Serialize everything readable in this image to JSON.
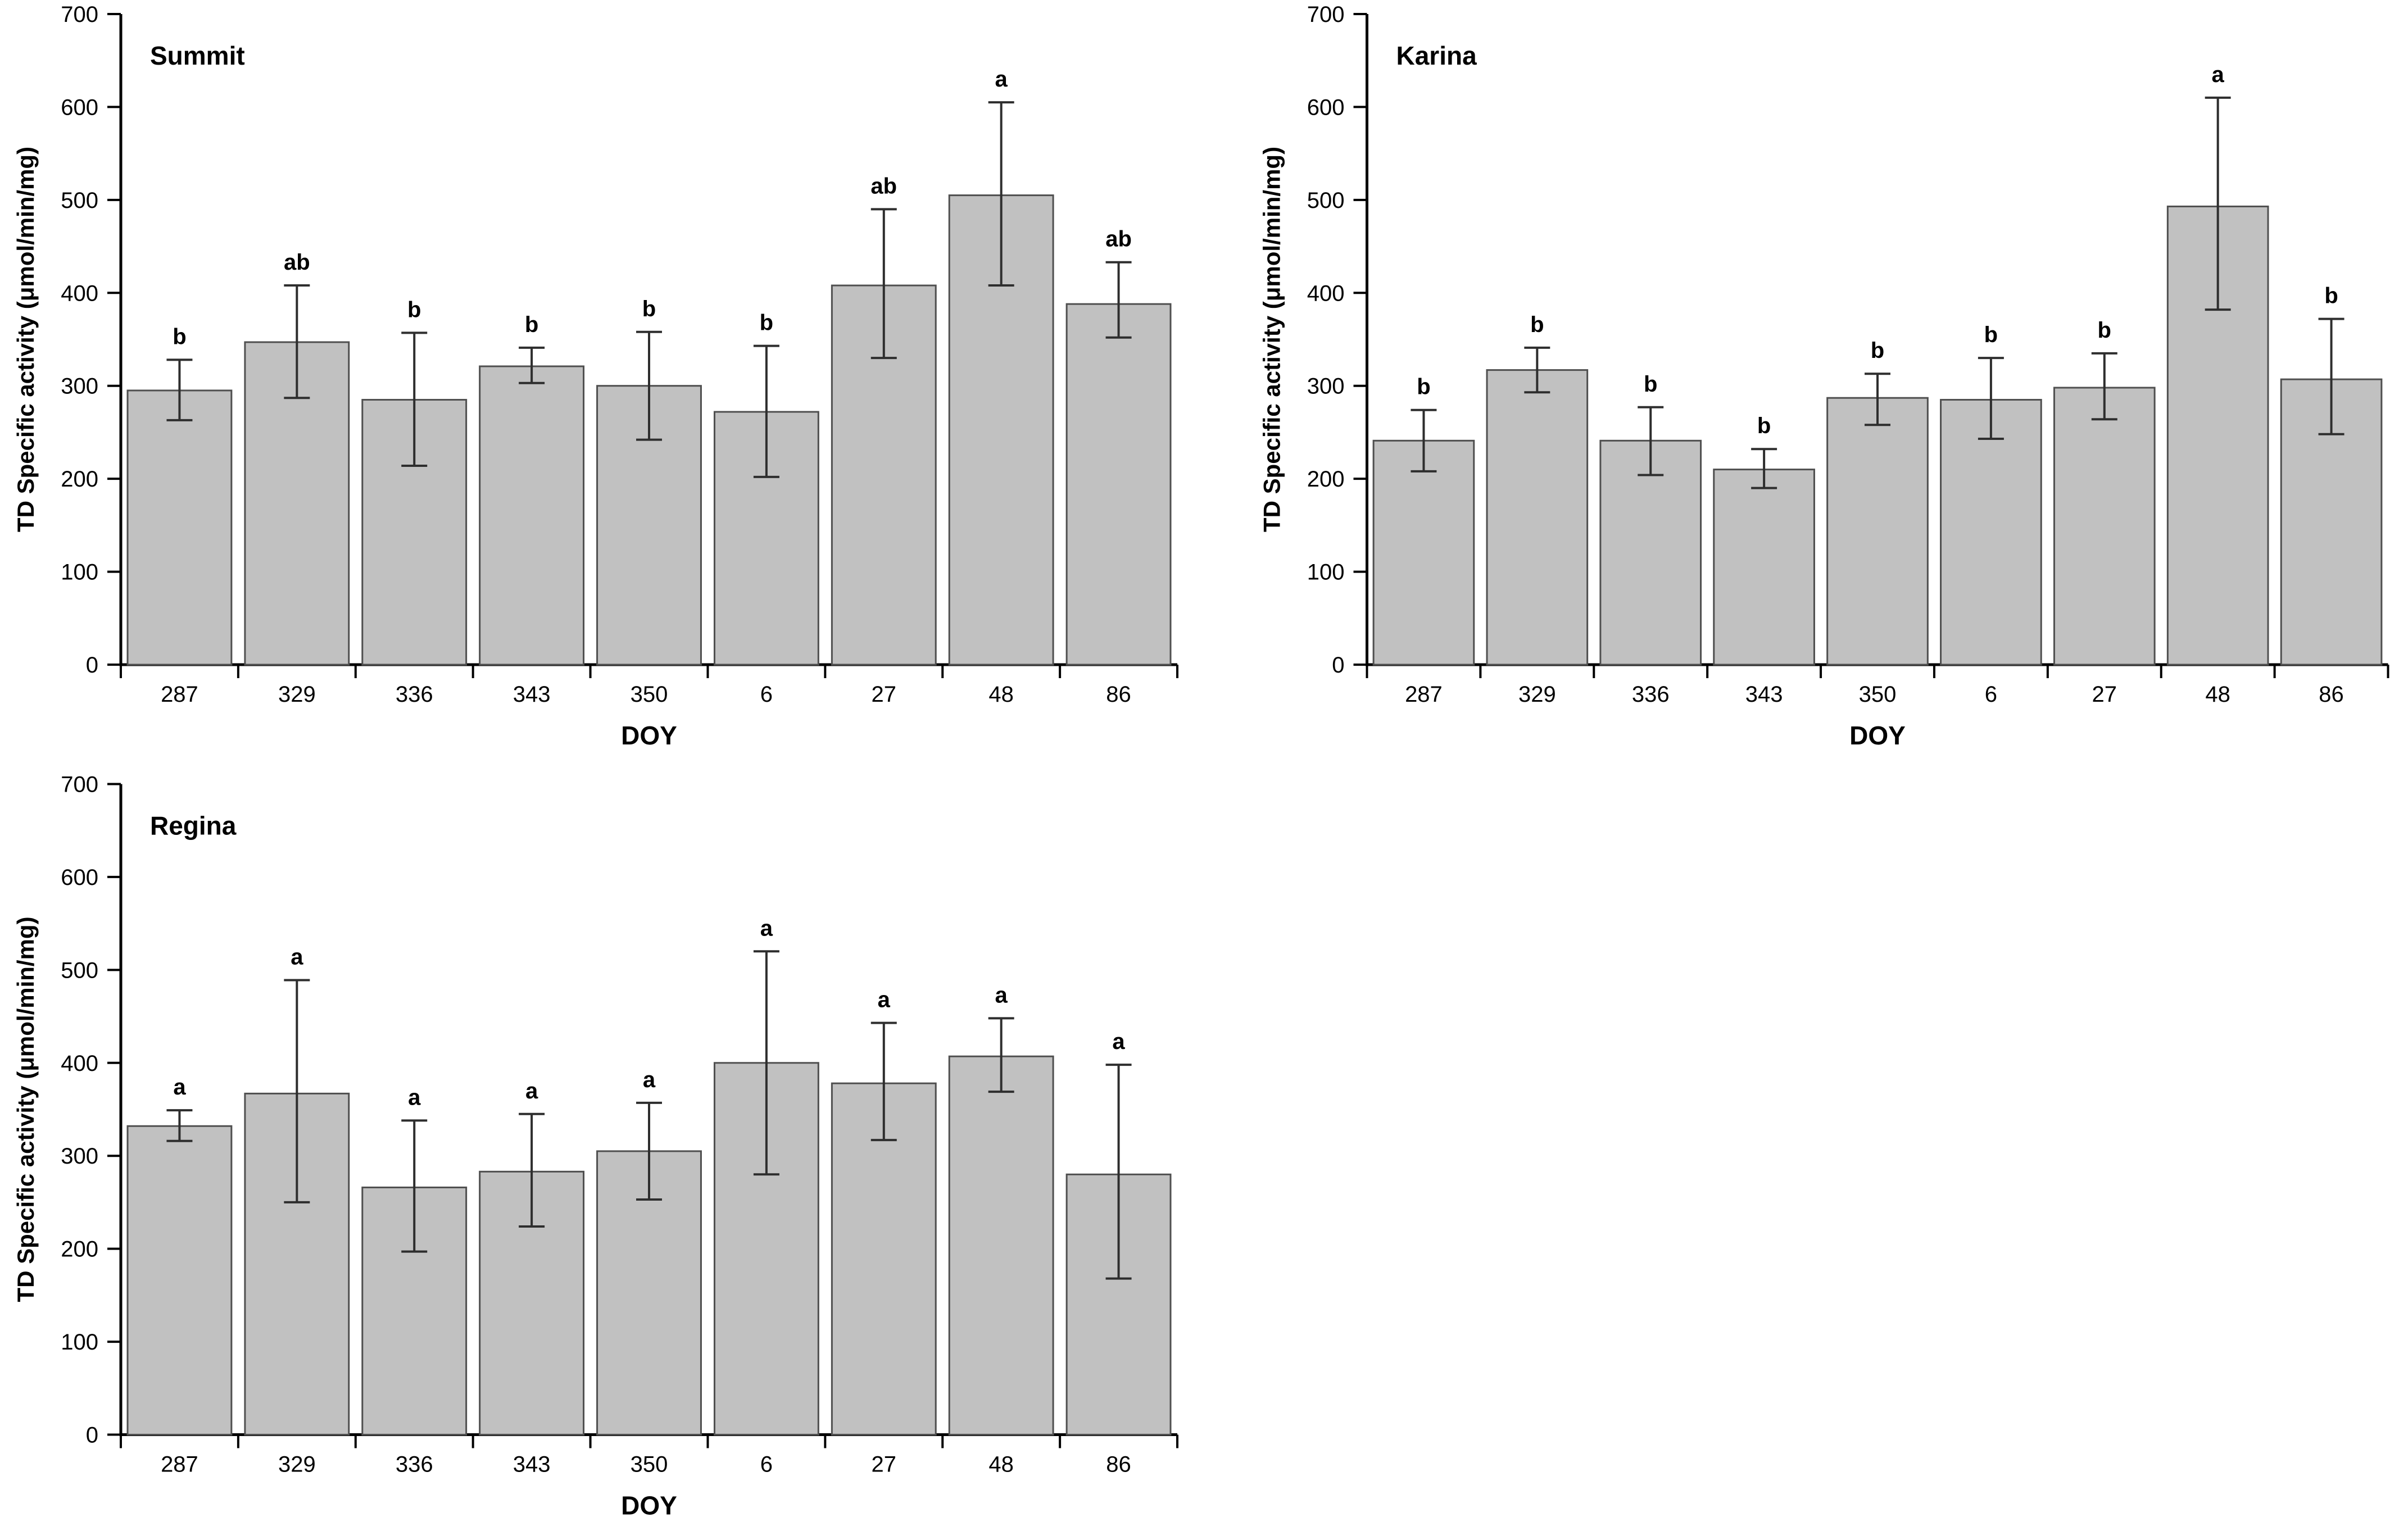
{
  "figure": {
    "background": "#ffffff",
    "panel_titles": [
      "Summit",
      "Karina",
      "Regina"
    ]
  },
  "chart_data": [
    {
      "id": "summit",
      "type": "bar",
      "title": "Summit",
      "xlabel": "DOY",
      "ylabel": "TD Specific activity (μmol/min/mg)",
      "ylim": [
        0,
        700
      ],
      "yticks": [
        0,
        100,
        200,
        300,
        400,
        500,
        600,
        700
      ],
      "grid": false,
      "legend": "none",
      "categories": [
        "287",
        "329",
        "336",
        "343",
        "350",
        "6",
        "27",
        "48",
        "86"
      ],
      "values": [
        295,
        347,
        285,
        321,
        300,
        272,
        408,
        505,
        388
      ],
      "whisker_high": [
        328,
        408,
        357,
        341,
        358,
        343,
        490,
        605,
        433
      ],
      "whisker_low": [
        263,
        287,
        214,
        303,
        242,
        202,
        330,
        408,
        352
      ],
      "sig_labels": [
        "b",
        "ab",
        "b",
        "b",
        "b",
        "b",
        "ab",
        "a",
        "ab"
      ],
      "bar_color": "#c1c1c1",
      "bar_border": "#4f4f4f",
      "error_color": "#2e2e2e"
    },
    {
      "id": "karina",
      "type": "bar",
      "title": "Karina",
      "xlabel": "DOY",
      "ylabel": "TD Specific activity (μmol/min/mg)",
      "ylim": [
        0,
        700
      ],
      "yticks": [
        0,
        100,
        200,
        300,
        400,
        500,
        600,
        700
      ],
      "grid": false,
      "legend": "none",
      "categories": [
        "287",
        "329",
        "336",
        "343",
        "350",
        "6",
        "27",
        "48",
        "86"
      ],
      "values": [
        241,
        317,
        241,
        210,
        287,
        285,
        298,
        493,
        307
      ],
      "whisker_high": [
        274,
        341,
        277,
        232,
        313,
        330,
        335,
        610,
        372
      ],
      "whisker_low": [
        208,
        293,
        204,
        190,
        258,
        243,
        264,
        382,
        248
      ],
      "sig_labels": [
        "b",
        "b",
        "b",
        "b",
        "b",
        "b",
        "b",
        "a",
        "b"
      ],
      "bar_color": "#c1c1c1",
      "bar_border": "#4f4f4f",
      "error_color": "#2e2e2e"
    },
    {
      "id": "regina",
      "type": "bar",
      "title": "Regina",
      "xlabel": "DOY",
      "ylabel": "TD Specific activity (μmol/min/mg)",
      "ylim": [
        0,
        700
      ],
      "yticks": [
        0,
        100,
        200,
        300,
        400,
        500,
        600,
        700
      ],
      "grid": false,
      "legend": "none",
      "categories": [
        "287",
        "329",
        "336",
        "343",
        "350",
        "6",
        "27",
        "48",
        "86"
      ],
      "values": [
        332,
        367,
        266,
        283,
        305,
        400,
        378,
        407,
        280
      ],
      "whisker_high": [
        349,
        489,
        338,
        345,
        357,
        520,
        443,
        448,
        398
      ],
      "whisker_low": [
        316,
        250,
        197,
        224,
        253,
        280,
        317,
        369,
        168
      ],
      "sig_labels": [
        "a",
        "a",
        "a",
        "a",
        "a",
        "a",
        "a",
        "a",
        "a"
      ],
      "bar_color": "#c1c1c1",
      "bar_border": "#4f4f4f",
      "error_color": "#2e2e2e"
    }
  ]
}
